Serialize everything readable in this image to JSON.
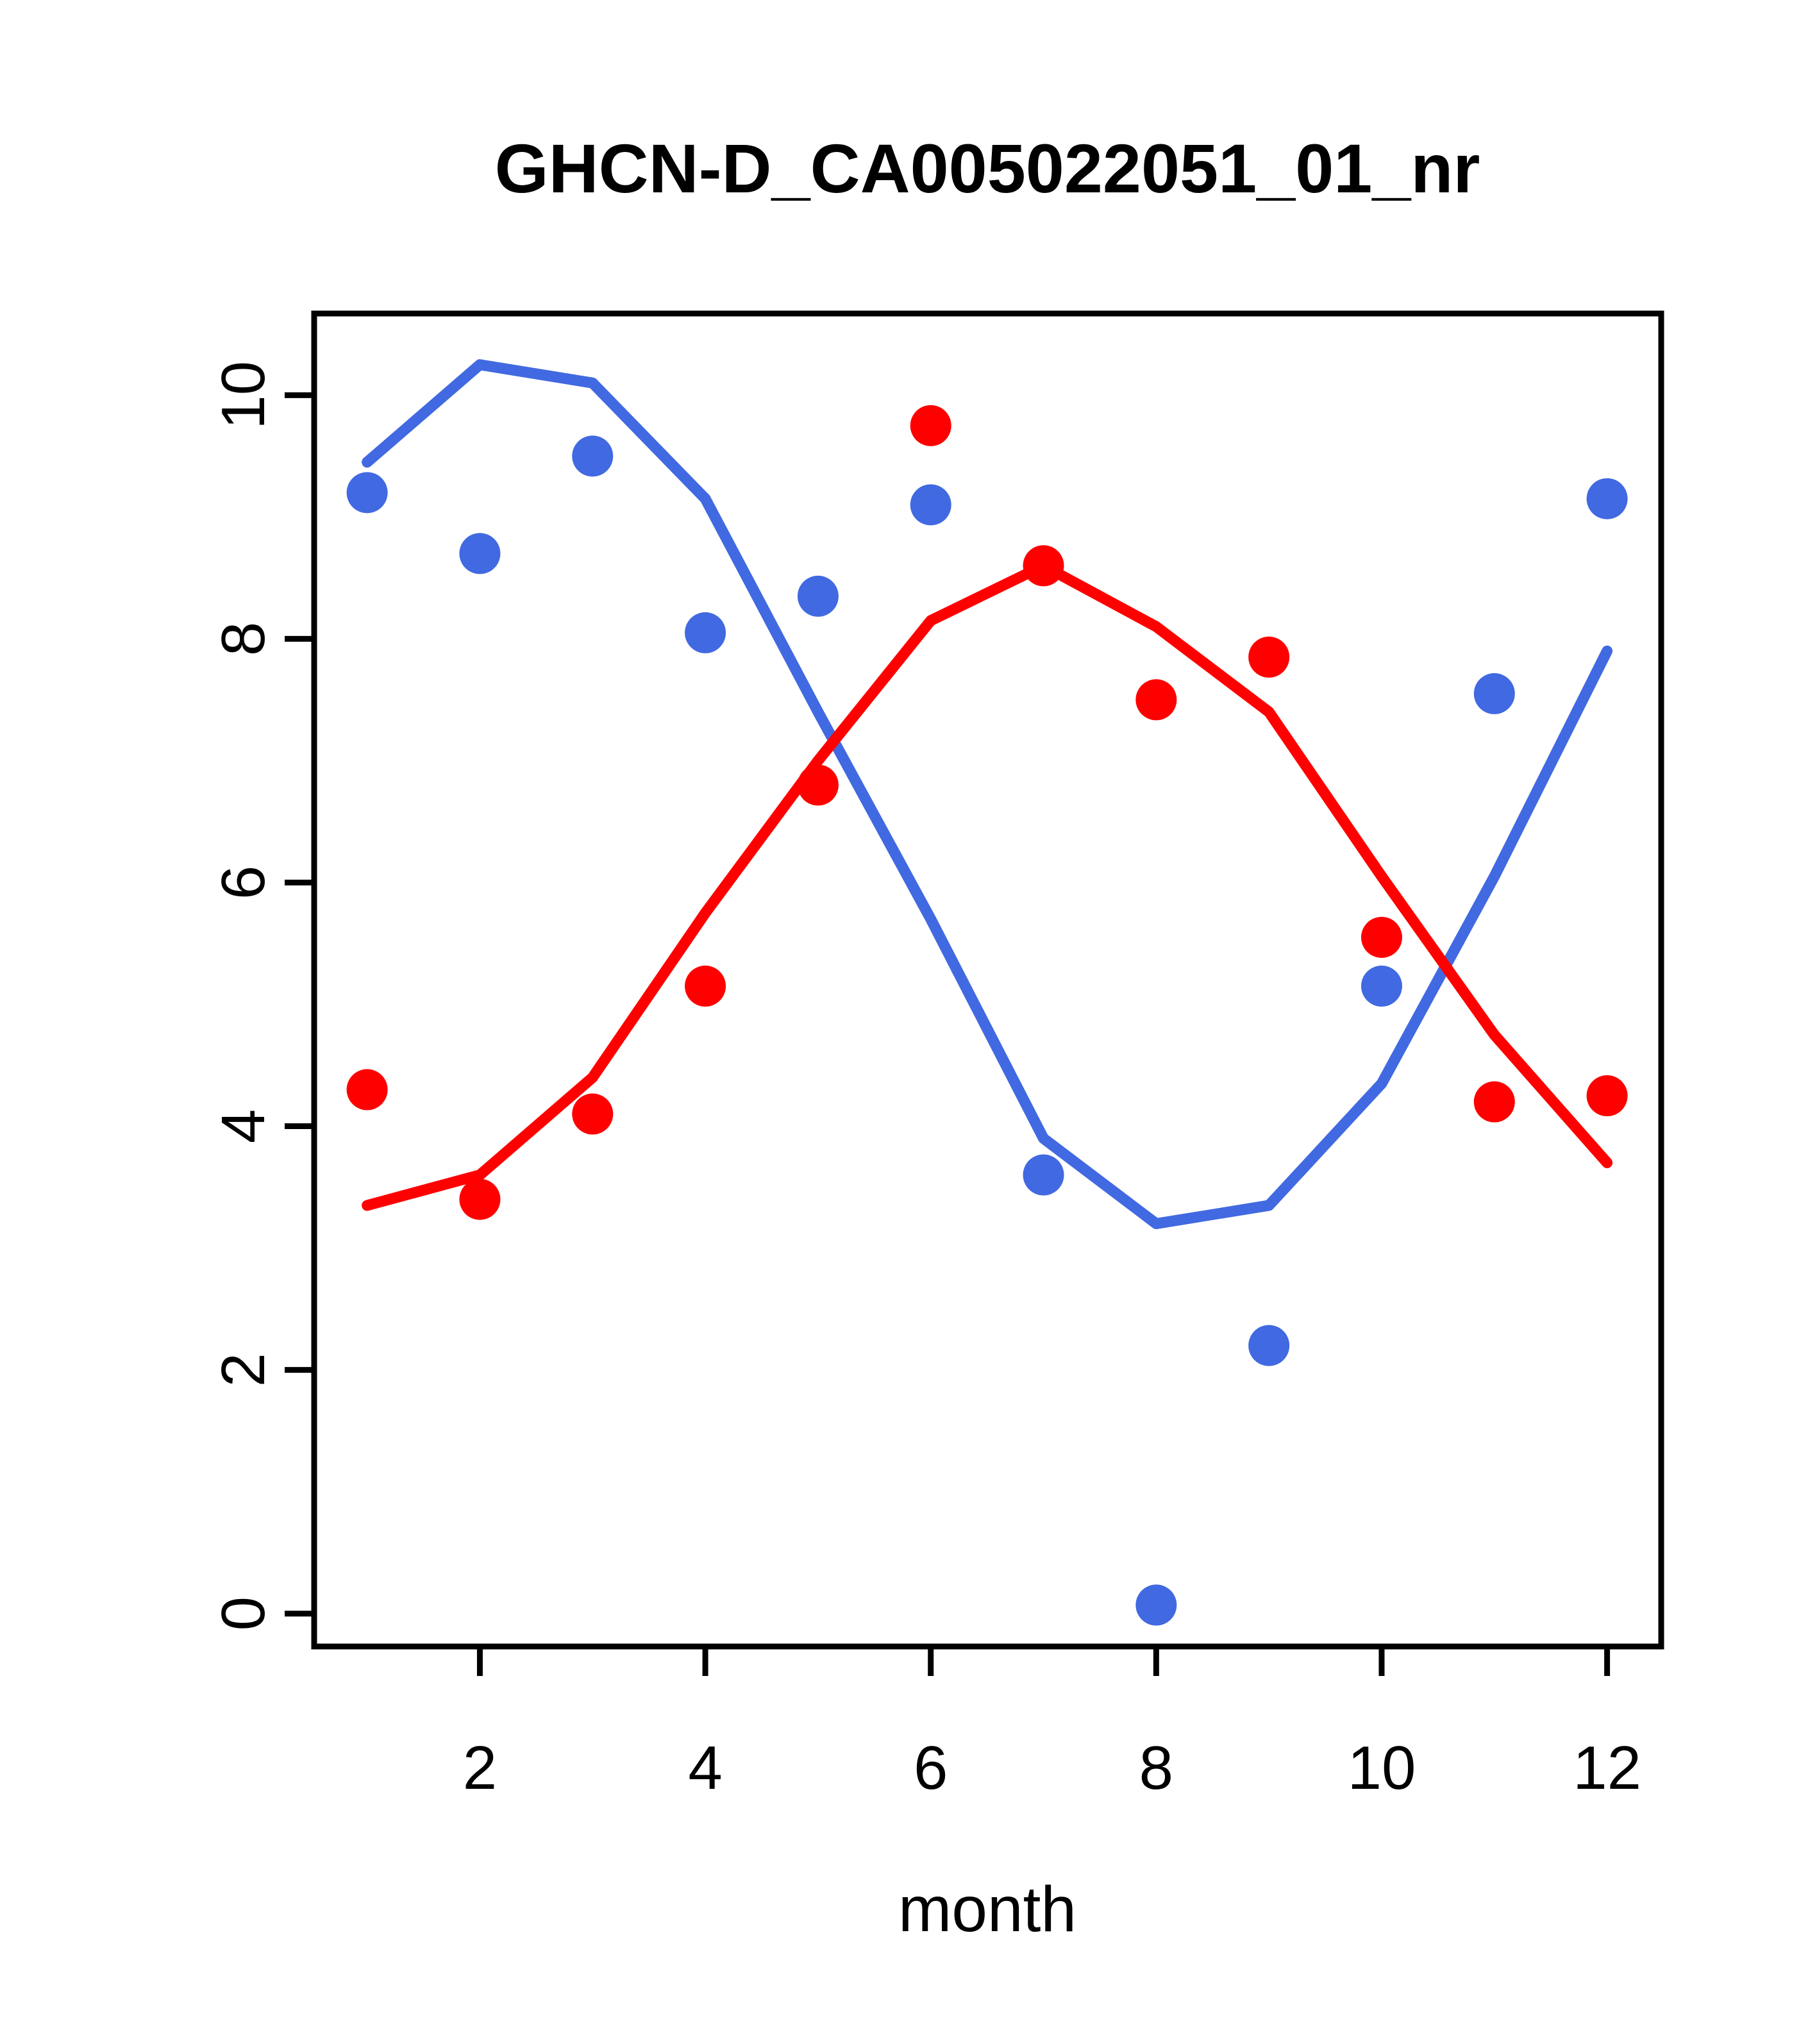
{
  "chart_data": {
    "type": "scatter",
    "title": "GHCN-D_CA005022051_01_nr",
    "xlabel": "month",
    "ylabel": "",
    "x": [
      1,
      2,
      3,
      4,
      5,
      6,
      7,
      8,
      9,
      10,
      11,
      12
    ],
    "series": [
      {
        "name": "blue-points",
        "kind": "points",
        "color": "#4169E1",
        "values": [
          9.2,
          8.7,
          9.5,
          8.05,
          8.35,
          9.1,
          3.6,
          0.07,
          2.2,
          5.15,
          7.55,
          9.15
        ]
      },
      {
        "name": "red-points",
        "kind": "points",
        "color": "#FF0000",
        "values": [
          4.3,
          3.4,
          4.1,
          5.15,
          6.8,
          9.75,
          8.6,
          7.5,
          7.85,
          5.55,
          4.2,
          4.25
        ]
      },
      {
        "name": "blue-lowess-line",
        "kind": "line",
        "color": "#4169E1",
        "values": [
          9.45,
          10.25,
          10.1,
          9.15,
          7.4,
          5.7,
          3.9,
          3.2,
          3.35,
          4.35,
          6.05,
          7.9
        ]
      },
      {
        "name": "red-lowess-line",
        "kind": "line",
        "color": "#FF0000",
        "values": [
          3.35,
          3.6,
          4.4,
          5.75,
          7.0,
          8.15,
          8.6,
          8.1,
          7.4,
          6.05,
          4.75,
          3.7
        ]
      }
    ],
    "xticks": [
      2,
      4,
      6,
      8,
      10,
      12
    ],
    "yticks": [
      0,
      2,
      4,
      6,
      8,
      10
    ],
    "xlim": [
      0.53,
      12.48
    ],
    "ylim": [
      -0.27,
      10.67
    ],
    "grid": false,
    "legend": null,
    "colors": {
      "blue": "#4169E1",
      "red": "#FF0000",
      "frame": "#000000",
      "background": "#FFFFFF"
    }
  },
  "layout_text": {
    "title": "GHCN-D_CA005022051_01_nr",
    "xlabel": "month"
  }
}
